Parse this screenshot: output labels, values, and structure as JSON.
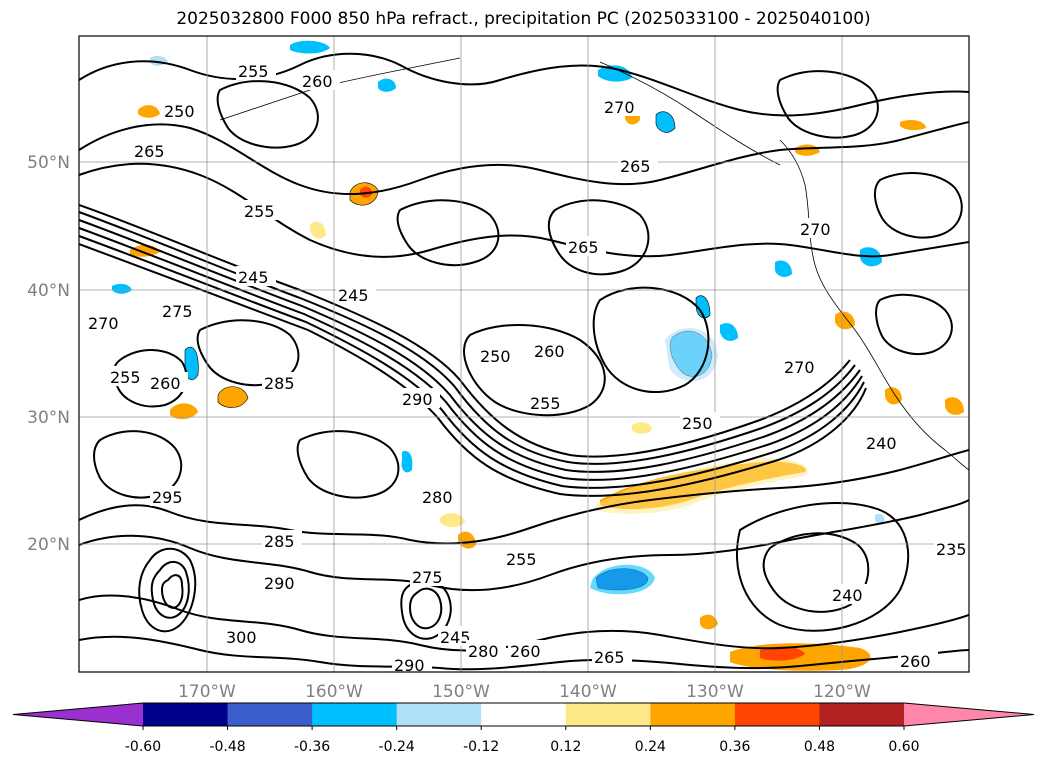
{
  "title": "2025032800 F000 850 hPa refract., precipitation PC (2025033100 - 2025040100)",
  "latitude_labels": [
    "50°N",
    "40°N",
    "30°N",
    "20°N"
  ],
  "longitude_labels": [
    "170°W",
    "160°W",
    "150°W",
    "140°W",
    "130°W",
    "120°W"
  ],
  "contour_labels": [
    "255",
    "260",
    "250",
    "265",
    "270",
    "265",
    "255",
    "250",
    "245",
    "245",
    "275",
    "270",
    "265",
    "255",
    "260",
    "285",
    "290",
    "255",
    "250",
    "260",
    "270",
    "240",
    "280",
    "285",
    "295",
    "290",
    "300",
    "275",
    "245",
    "260",
    "265",
    "235",
    "240",
    "255",
    "260",
    "270",
    "290",
    "280"
  ],
  "colorbar": {
    "ticks": [
      "-0.60",
      "-0.48",
      "-0.36",
      "-0.24",
      "-0.12",
      "0.12",
      "0.24",
      "0.36",
      "0.48",
      "0.60"
    ],
    "colors": [
      "#9b30d0",
      "#00008b",
      "#3a5fcd",
      "#00bfff",
      "#b0e0f8",
      "#ffffff",
      "#ffe888",
      "#ffa500",
      "#ff4500",
      "#b22222",
      "#ff88aa"
    ]
  }
}
